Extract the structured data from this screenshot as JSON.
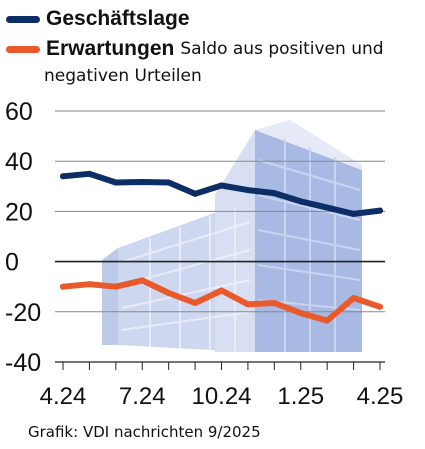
{
  "legend": [
    {
      "label": "Geschäftslage",
      "color": "#0d2d66"
    },
    {
      "label": "Erwartungen",
      "color": "#e85a2b",
      "note_line1": "Saldo aus positiven und",
      "note_line2": "negativen Urteilen"
    }
  ],
  "source": "Grafik: VDI nachrichten 9/2025",
  "chart_data": {
    "type": "line",
    "x": [
      "4.24",
      "5.24",
      "6.24",
      "7.24",
      "8.24",
      "9.24",
      "10.24",
      "11.24",
      "12.24",
      "1.25",
      "2.25",
      "3.25",
      "4.25"
    ],
    "xtick_labels": [
      "4.24",
      "7.24",
      "10.24",
      "1.25",
      "4.25"
    ],
    "ytick_labels": [
      "60",
      "40",
      "20",
      "0",
      "-20",
      "-40"
    ],
    "ylim": [
      -40,
      60
    ],
    "grid": true,
    "series": [
      {
        "name": "Geschäftslage",
        "color": "#0d2d66",
        "values": [
          34,
          35,
          31.5,
          31.7,
          31.5,
          27,
          30.3,
          28.5,
          27.3,
          24,
          21.5,
          19,
          20.3
        ]
      },
      {
        "name": "Erwartungen",
        "color": "#e85a2b",
        "values": [
          -10,
          -9,
          -10,
          -7.5,
          -12.5,
          -16.5,
          -11.5,
          -17,
          -16.5,
          -20.5,
          -23.5,
          -14.5,
          -18
        ]
      }
    ]
  }
}
